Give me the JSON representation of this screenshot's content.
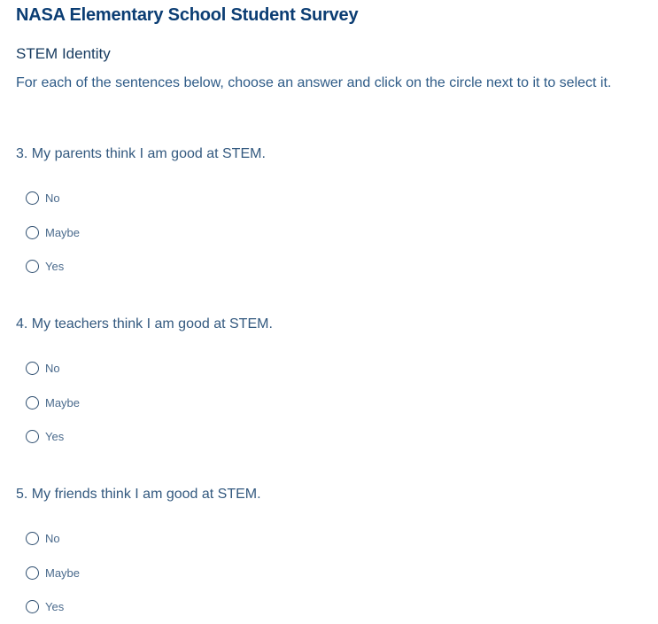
{
  "survey_title": "NASA Elementary School Student Survey",
  "section_title": "STEM Identity",
  "instructions": "For each of the sentences below, choose an answer and click on the circle next to it to select it.",
  "questions": [
    {
      "text": "3. My parents think I am good at STEM.",
      "options": [
        "No",
        "Maybe",
        "Yes"
      ]
    },
    {
      "text": "4. My teachers think I am good at STEM.",
      "options": [
        "No",
        "Maybe",
        "Yes"
      ]
    },
    {
      "text": "5. My friends think I am good at STEM.",
      "options": [
        "No",
        "Maybe",
        "Yes"
      ]
    }
  ]
}
